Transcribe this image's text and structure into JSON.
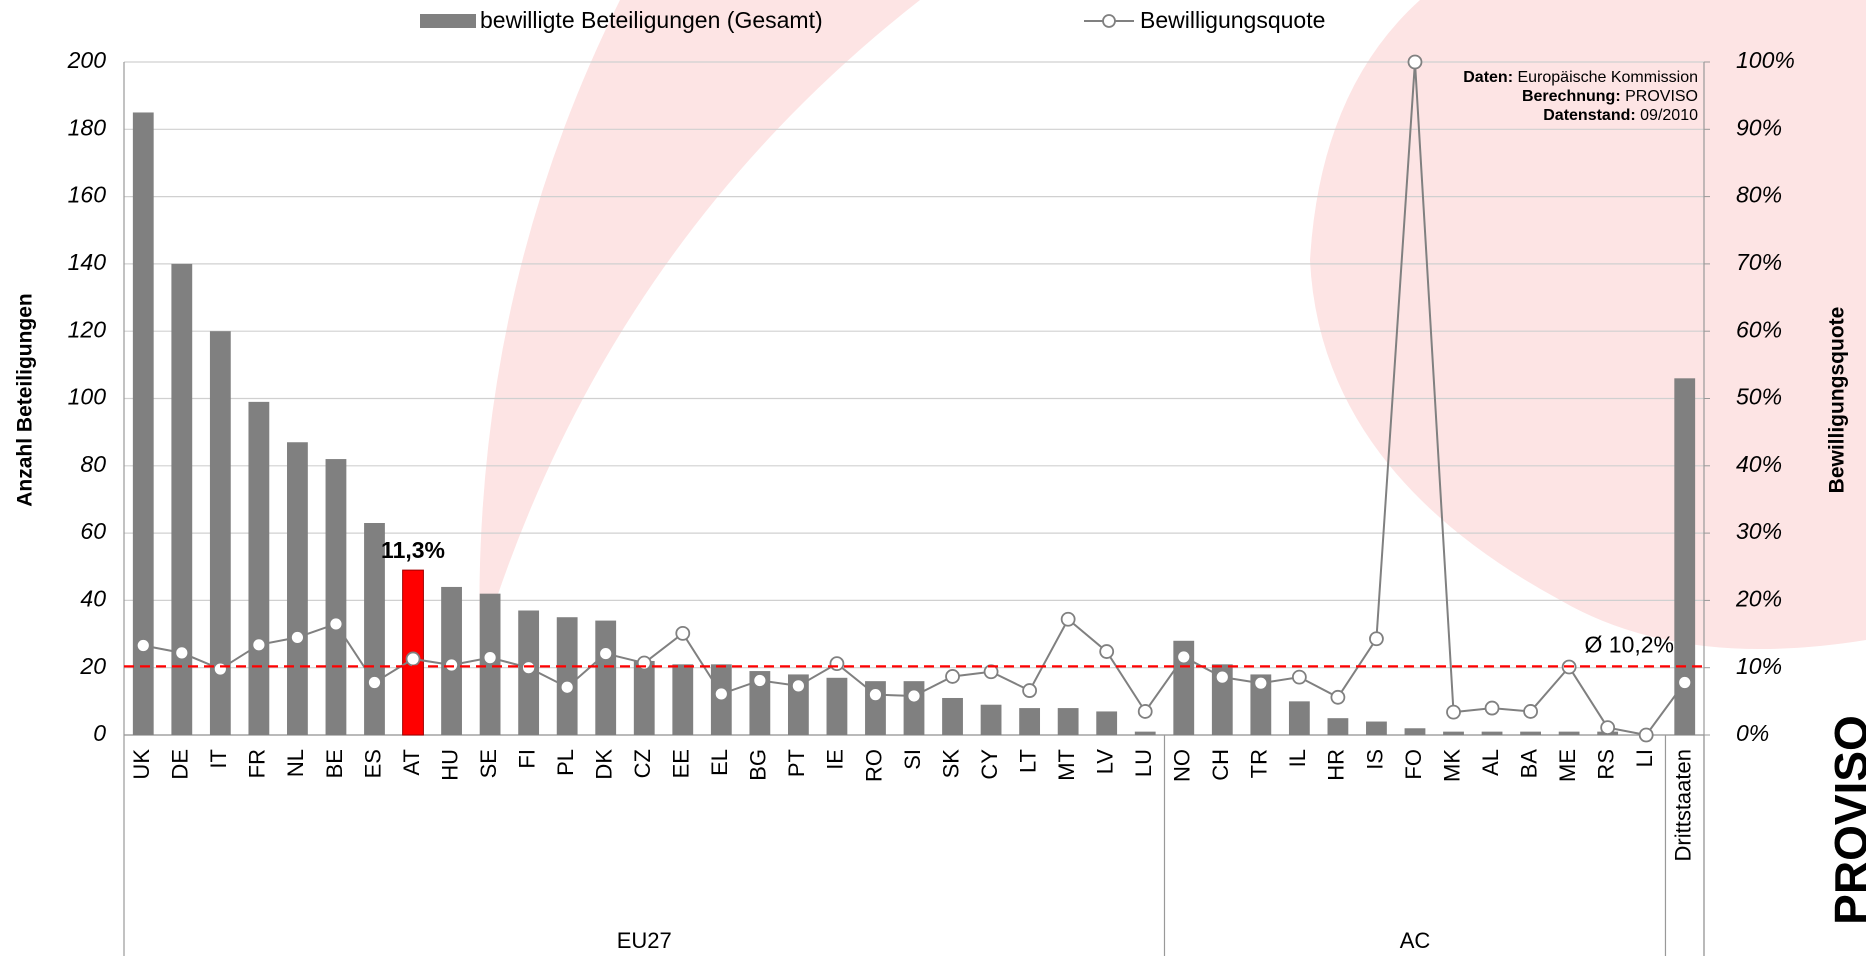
{
  "chart_data": {
    "type": "bar",
    "groups": [
      {
        "label": "EU27",
        "categories": [
          "UK",
          "DE",
          "IT",
          "FR",
          "NL",
          "BE",
          "ES",
          "AT",
          "HU",
          "SE",
          "FI",
          "PL",
          "DK",
          "CZ",
          "EE",
          "EL",
          "BG",
          "PT",
          "IE",
          "RO",
          "SI",
          "SK",
          "CY",
          "LT",
          "MT",
          "LV",
          "LU"
        ]
      },
      {
        "label": "AC",
        "categories": [
          "NO",
          "CH",
          "TR",
          "IL",
          "HR",
          "IS",
          "FO",
          "MK",
          "AL",
          "BA",
          "ME",
          "RS",
          "LI"
        ]
      },
      {
        "label": null,
        "categories": [
          "Drittstaaten"
        ]
      }
    ],
    "series": [
      {
        "name": "bewilligte Beteiligungen (Gesamt)",
        "type": "bar",
        "color": "#808080",
        "values": [
          185,
          140,
          120,
          99,
          87,
          82,
          63,
          49,
          44,
          42,
          37,
          35,
          34,
          22,
          21,
          21,
          19,
          18,
          17,
          16,
          16,
          11,
          9,
          8,
          8,
          7,
          1,
          28,
          21,
          18,
          10,
          5,
          4,
          2,
          1,
          1,
          1,
          1,
          1,
          0,
          106
        ]
      },
      {
        "name": "Bewilligungsquote",
        "type": "line",
        "axis": "y2",
        "color": "#808080",
        "values": [
          13.3,
          12.2,
          9.8,
          13.4,
          14.5,
          16.5,
          7.8,
          11.3,
          10.4,
          11.5,
          10.0,
          7.1,
          12.1,
          10.7,
          15.1,
          6.1,
          8.1,
          7.3,
          10.6,
          6.0,
          5.8,
          8.7,
          9.4,
          6.6,
          17.2,
          12.4,
          3.5,
          11.6,
          8.6,
          7.7,
          8.6,
          5.6,
          14.3,
          100,
          3.4,
          4.0,
          3.5,
          10.1,
          1.1,
          0,
          7.8
        ]
      }
    ],
    "highlight_category": "AT",
    "highlight_color": "#ff0000",
    "annotations": [
      {
        "category": "AT",
        "text": "11,3%",
        "color": "#ff0000"
      }
    ],
    "reference_line": {
      "axis": "y2",
      "value": 10.2,
      "label": "Ø 10,2%",
      "color": "#ff0000"
    },
    "y_label": "Anzahl Beteiligungen",
    "y2_label": "Bewilligungsquote",
    "ylim": [
      0,
      200
    ],
    "yticks": [
      0,
      20,
      40,
      60,
      80,
      100,
      120,
      140,
      160,
      180,
      200
    ],
    "y2lim": [
      0,
      100
    ],
    "y2ticks": [
      {
        "value": 0,
        "label": "0%"
      },
      {
        "value": 10,
        "label": "10%"
      },
      {
        "value": 20,
        "label": "20%"
      },
      {
        "value": 30,
        "label": "30%"
      },
      {
        "value": 40,
        "label": "40%"
      },
      {
        "value": 50,
        "label": "50%"
      },
      {
        "value": 60,
        "label": "60%"
      },
      {
        "value": 70,
        "label": "70%"
      },
      {
        "value": 80,
        "label": "80%"
      },
      {
        "value": 90,
        "label": "90%"
      },
      {
        "value": 100,
        "label": "100%"
      }
    ],
    "grid": true,
    "source": [
      {
        "key": "Daten:",
        "text": "Europäische Kommission"
      },
      {
        "key": "Berechnung:",
        "text": "PROVISO"
      },
      {
        "key": "Datenstand:",
        "text": "09/2010"
      }
    ],
    "logo": "PROVISO"
  }
}
